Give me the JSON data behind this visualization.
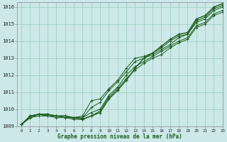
{
  "xlabel": "Graphe pression niveau de la mer (hPa)",
  "background_color": "#cce8e8",
  "grid_color": "#99ccbb",
  "line_color": "#1a5c1a",
  "xlim": [
    -0.5,
    23
  ],
  "ylim": [
    1009.0,
    1016.3
  ],
  "yticks": [
    1009,
    1010,
    1011,
    1012,
    1013,
    1014,
    1015,
    1016
  ],
  "xticks": [
    0,
    1,
    2,
    3,
    4,
    5,
    6,
    7,
    8,
    9,
    10,
    11,
    12,
    13,
    14,
    15,
    16,
    17,
    18,
    19,
    20,
    21,
    22,
    23
  ],
  "series": [
    [
      1009.1,
      1009.6,
      1009.7,
      1009.7,
      1009.6,
      1009.6,
      1009.5,
      1009.6,
      1010.5,
      1010.6,
      1011.2,
      1011.7,
      1012.4,
      1013.0,
      1013.1,
      1013.3,
      1013.6,
      1014.0,
      1014.3,
      1014.4,
      1015.2,
      1015.4,
      1015.9,
      1016.1
    ],
    [
      1009.1,
      1009.5,
      1009.7,
      1009.6,
      1009.6,
      1009.5,
      1009.5,
      1009.5,
      1010.1,
      1010.4,
      1011.1,
      1011.6,
      1012.2,
      1012.8,
      1013.0,
      1013.2,
      1013.5,
      1013.8,
      1014.2,
      1014.4,
      1015.1,
      1015.3,
      1015.8,
      1016.0
    ],
    [
      1009.1,
      1009.5,
      1009.7,
      1009.6,
      1009.6,
      1009.5,
      1009.5,
      1009.5,
      1009.8,
      1010.0,
      1010.8,
      1011.3,
      1012.0,
      1012.5,
      1012.8,
      1013.1,
      1013.4,
      1013.7,
      1014.0,
      1014.2,
      1014.9,
      1015.1,
      1015.6,
      1015.8
    ],
    [
      1009.1,
      1009.5,
      1009.6,
      1009.6,
      1009.5,
      1009.5,
      1009.4,
      1009.4,
      1009.6,
      1009.9,
      1010.7,
      1011.2,
      1011.8,
      1012.3,
      1012.7,
      1013.0,
      1013.2,
      1013.6,
      1013.9,
      1014.1,
      1014.8,
      1015.0,
      1015.5,
      1015.7
    ]
  ],
  "series_main": [
    1009.1,
    1009.6,
    1009.7,
    1009.7,
    1009.6,
    1009.6,
    1009.5,
    1009.5,
    1009.7,
    1009.9,
    1010.7,
    1011.1,
    1011.7,
    1012.3,
    1012.6,
    1012.9,
    1013.2,
    1013.6,
    1013.9,
    1014.1,
    1014.9,
    1015.1,
    1015.6,
    1015.8
  ],
  "series_dip": [
    1009.1,
    1009.6,
    1009.7,
    1009.7,
    1009.6,
    1009.6,
    1009.5,
    1009.5,
    1009.5,
    1009.8,
    1010.6,
    1011.2,
    1011.7,
    1012.3,
    1013.0,
    1013.3,
    1013.6,
    1014.0,
    1014.3,
    1014.4,
    1015.2,
    1015.4,
    1015.9,
    1016.1
  ]
}
